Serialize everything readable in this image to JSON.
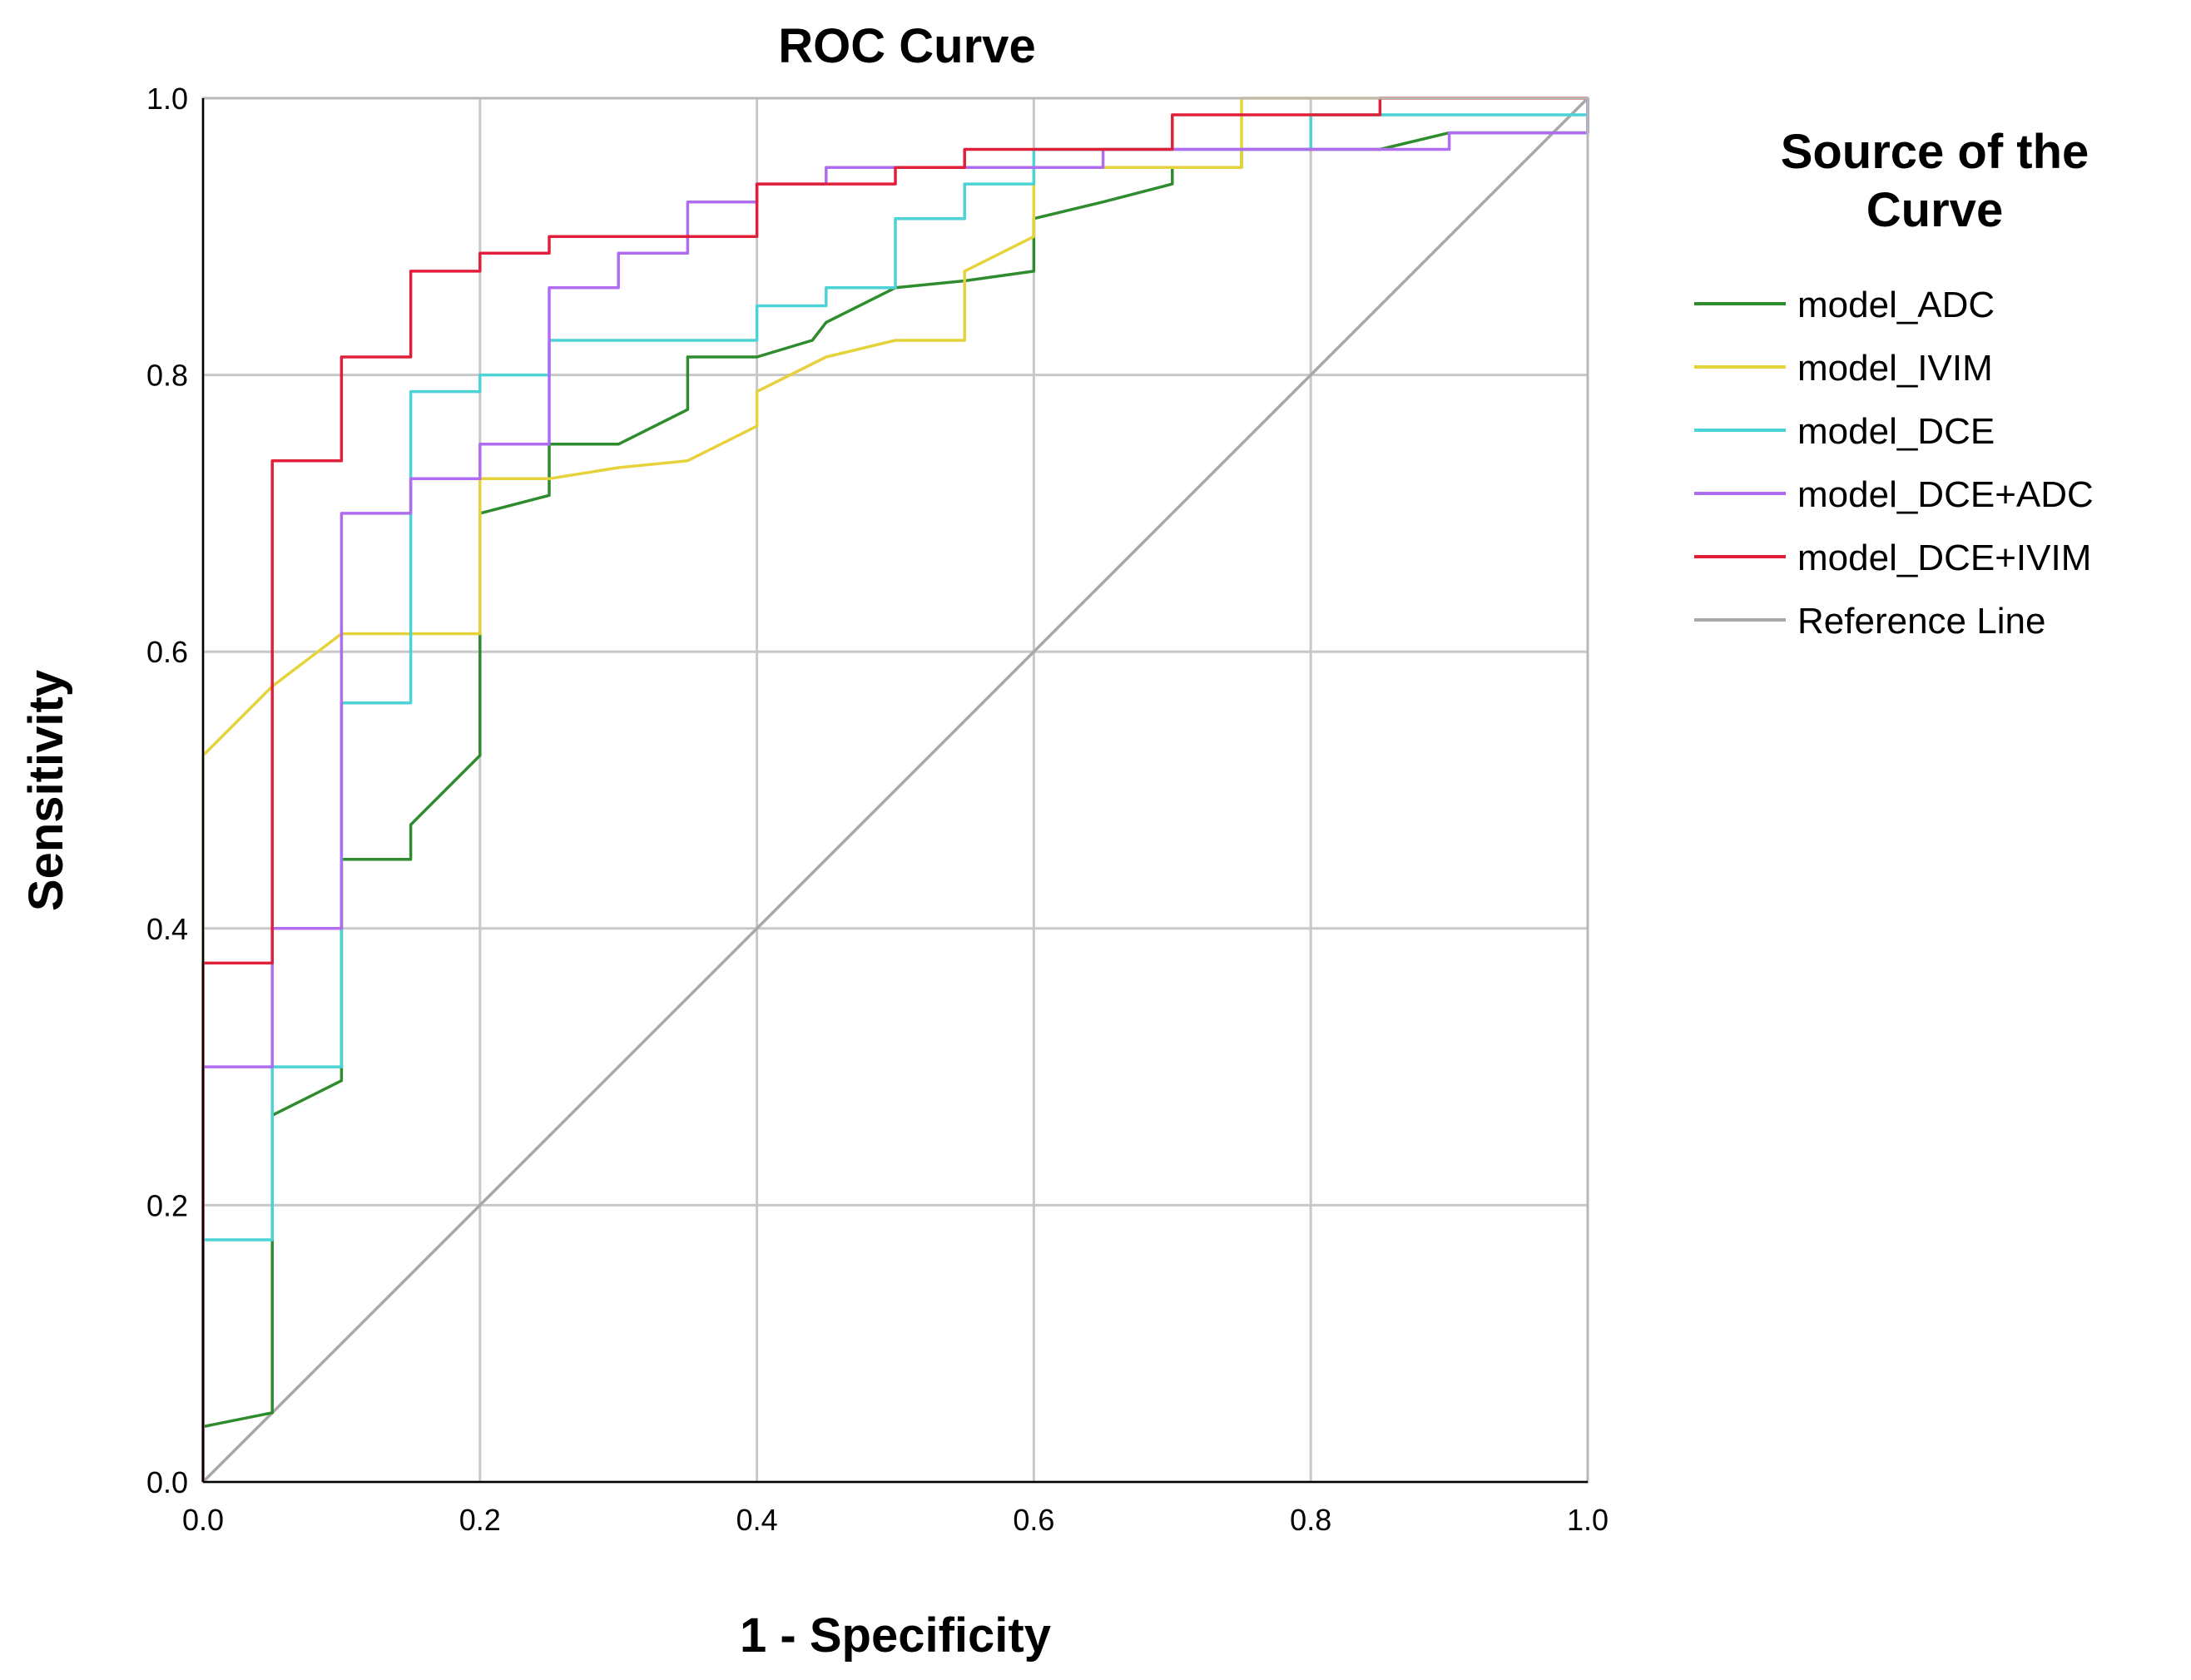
{
  "chart_data": {
    "type": "line",
    "title": "ROC Curve",
    "xlabel": "1 - Specificity",
    "ylabel": "Sensitivity",
    "xlim": [
      0,
      1
    ],
    "ylim": [
      0,
      1
    ],
    "xticks": [
      "0.0",
      "0.2",
      "0.4",
      "0.6",
      "0.8",
      "1.0"
    ],
    "yticks": [
      "0.0",
      "0.2",
      "0.4",
      "0.6",
      "0.8",
      "1.0"
    ],
    "grid": true,
    "legend": {
      "title_lines": [
        "Source of the",
        "Curve"
      ],
      "placement": "right"
    },
    "series": [
      {
        "name": "model_ADC",
        "color": "#2e8b2e",
        "points": [
          [
            0,
            0
          ],
          [
            0,
            0.04
          ],
          [
            0.05,
            0.05
          ],
          [
            0.05,
            0.265
          ],
          [
            0.1,
            0.29
          ],
          [
            0.1,
            0.45
          ],
          [
            0.15,
            0.45
          ],
          [
            0.15,
            0.475
          ],
          [
            0.2,
            0.525
          ],
          [
            0.2,
            0.7
          ],
          [
            0.25,
            0.713
          ],
          [
            0.25,
            0.75
          ],
          [
            0.3,
            0.75
          ],
          [
            0.35,
            0.775
          ],
          [
            0.35,
            0.813
          ],
          [
            0.4,
            0.813
          ],
          [
            0.44,
            0.825
          ],
          [
            0.45,
            0.838
          ],
          [
            0.5,
            0.863
          ],
          [
            0.55,
            0.868
          ],
          [
            0.6,
            0.875
          ],
          [
            0.6,
            0.913
          ],
          [
            0.65,
            0.925
          ],
          [
            0.7,
            0.938
          ],
          [
            0.7,
            0.95
          ],
          [
            0.75,
            0.95
          ],
          [
            0.75,
            0.963
          ],
          [
            0.85,
            0.963
          ],
          [
            0.9,
            0.975
          ],
          [
            1,
            0.975
          ],
          [
            1,
            1
          ]
        ]
      },
      {
        "name": "model_IVIM",
        "color": "#e6d23a",
        "points": [
          [
            0,
            0
          ],
          [
            0,
            0.525
          ],
          [
            0.05,
            0.575
          ],
          [
            0.1,
            0.613
          ],
          [
            0.2,
            0.613
          ],
          [
            0.2,
            0.725
          ],
          [
            0.25,
            0.725
          ],
          [
            0.3,
            0.733
          ],
          [
            0.35,
            0.738
          ],
          [
            0.4,
            0.763
          ],
          [
            0.4,
            0.788
          ],
          [
            0.45,
            0.813
          ],
          [
            0.5,
            0.825
          ],
          [
            0.55,
            0.825
          ],
          [
            0.55,
            0.875
          ],
          [
            0.6,
            0.9
          ],
          [
            0.6,
            0.95
          ],
          [
            0.75,
            0.95
          ],
          [
            0.75,
            1
          ],
          [
            1,
            1
          ]
        ]
      },
      {
        "name": "model_DCE",
        "color": "#4dd2d6",
        "points": [
          [
            0,
            0
          ],
          [
            0,
            0.175
          ],
          [
            0.05,
            0.175
          ],
          [
            0.05,
            0.3
          ],
          [
            0.1,
            0.3
          ],
          [
            0.1,
            0.563
          ],
          [
            0.15,
            0.563
          ],
          [
            0.15,
            0.788
          ],
          [
            0.2,
            0.788
          ],
          [
            0.2,
            0.8
          ],
          [
            0.25,
            0.8
          ],
          [
            0.25,
            0.825
          ],
          [
            0.4,
            0.825
          ],
          [
            0.4,
            0.85
          ],
          [
            0.45,
            0.85
          ],
          [
            0.45,
            0.863
          ],
          [
            0.5,
            0.863
          ],
          [
            0.5,
            0.913
          ],
          [
            0.55,
            0.913
          ],
          [
            0.55,
            0.938
          ],
          [
            0.6,
            0.938
          ],
          [
            0.6,
            0.963
          ],
          [
            0.8,
            0.963
          ],
          [
            0.8,
            0.988
          ],
          [
            1,
            0.988
          ],
          [
            1,
            1
          ]
        ]
      },
      {
        "name": "model_DCE+ADC",
        "color": "#b06cf0",
        "points": [
          [
            0,
            0
          ],
          [
            0,
            0.3
          ],
          [
            0.05,
            0.3
          ],
          [
            0.05,
            0.4
          ],
          [
            0.1,
            0.4
          ],
          [
            0.1,
            0.7
          ],
          [
            0.15,
            0.7
          ],
          [
            0.15,
            0.725
          ],
          [
            0.2,
            0.725
          ],
          [
            0.2,
            0.75
          ],
          [
            0.25,
            0.75
          ],
          [
            0.25,
            0.863
          ],
          [
            0.3,
            0.863
          ],
          [
            0.3,
            0.888
          ],
          [
            0.35,
            0.888
          ],
          [
            0.35,
            0.925
          ],
          [
            0.4,
            0.925
          ],
          [
            0.4,
            0.938
          ],
          [
            0.45,
            0.938
          ],
          [
            0.45,
            0.95
          ],
          [
            0.65,
            0.95
          ],
          [
            0.65,
            0.963
          ],
          [
            0.9,
            0.963
          ],
          [
            0.9,
            0.975
          ],
          [
            1,
            0.975
          ],
          [
            1,
            1
          ]
        ]
      },
      {
        "name": "model_DCE+IVIM",
        "color": "#e0203a",
        "points": [
          [
            0,
            0
          ],
          [
            0,
            0.375
          ],
          [
            0.05,
            0.375
          ],
          [
            0.05,
            0.738
          ],
          [
            0.1,
            0.738
          ],
          [
            0.1,
            0.813
          ],
          [
            0.15,
            0.813
          ],
          [
            0.15,
            0.875
          ],
          [
            0.2,
            0.875
          ],
          [
            0.2,
            0.888
          ],
          [
            0.25,
            0.888
          ],
          [
            0.25,
            0.9
          ],
          [
            0.4,
            0.9
          ],
          [
            0.4,
            0.938
          ],
          [
            0.5,
            0.938
          ],
          [
            0.5,
            0.95
          ],
          [
            0.55,
            0.95
          ],
          [
            0.55,
            0.963
          ],
          [
            0.7,
            0.963
          ],
          [
            0.7,
            0.988
          ],
          [
            0.85,
            0.988
          ],
          [
            0.85,
            1
          ],
          [
            1,
            1
          ]
        ]
      },
      {
        "name": "Reference Line",
        "color": "#a8a8a8",
        "points": [
          [
            0,
            0
          ],
          [
            1,
            1
          ]
        ]
      }
    ]
  }
}
